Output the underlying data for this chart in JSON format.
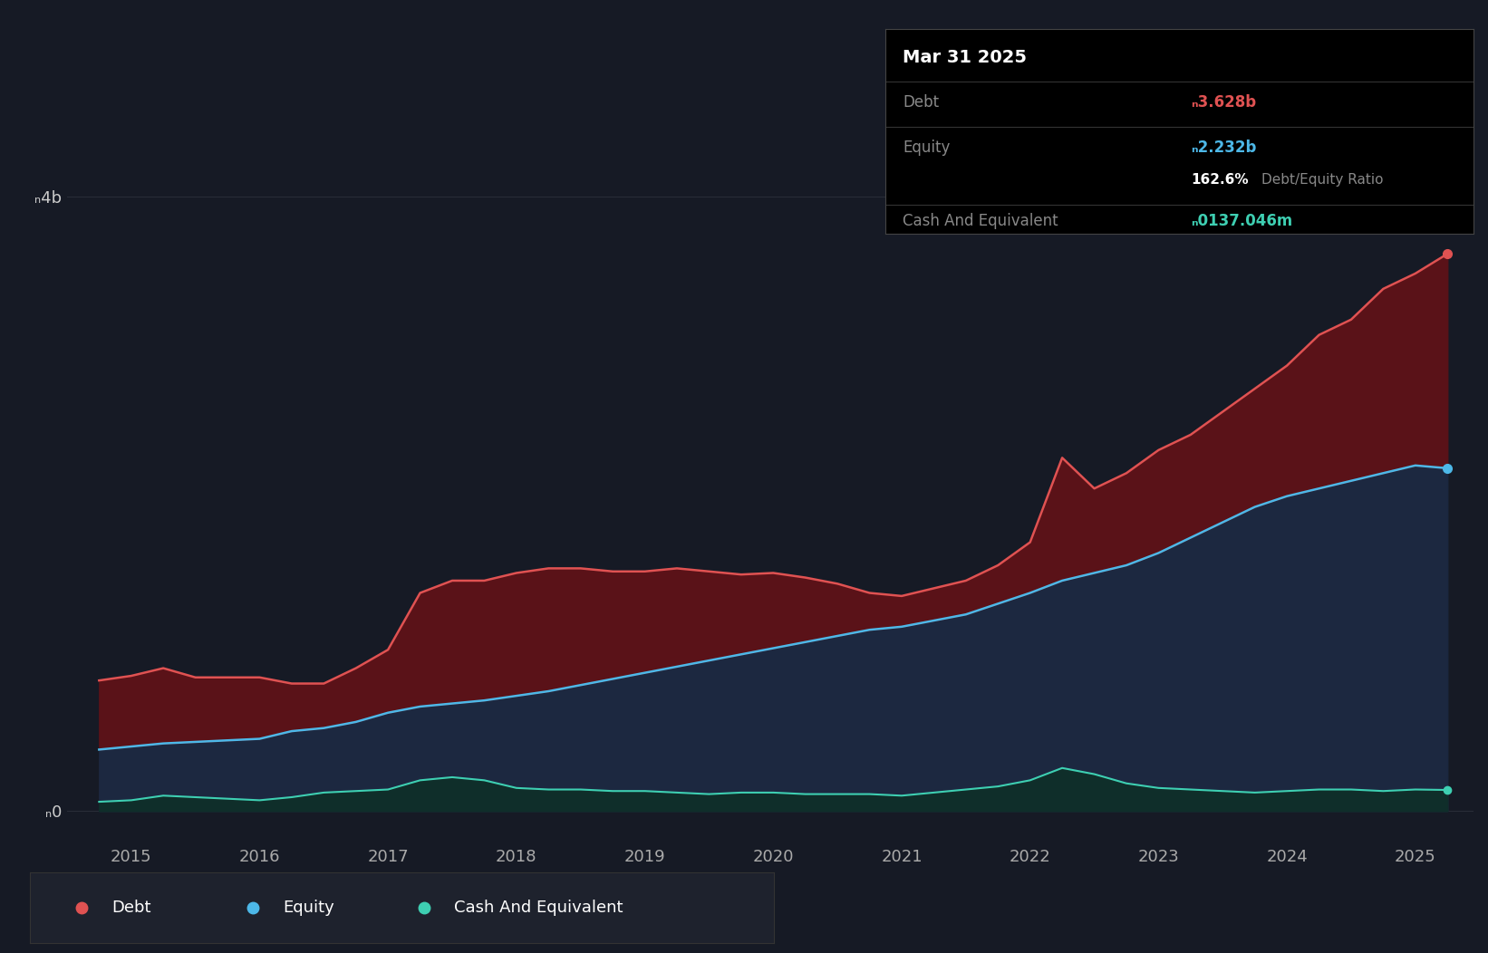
{
  "background_color": "#161a25",
  "plot_bg_color": "#161a25",
  "grid_color": "#2a2e39",
  "ylabel_4b": "ₙ4b",
  "ylabel_0": "ₙ0",
  "years_x": [
    2014.75,
    2015.0,
    2015.25,
    2015.5,
    2015.75,
    2016.0,
    2016.25,
    2016.5,
    2016.75,
    2017.0,
    2017.25,
    2017.5,
    2017.75,
    2018.0,
    2018.25,
    2018.5,
    2018.75,
    2019.0,
    2019.25,
    2019.5,
    2019.75,
    2020.0,
    2020.25,
    2020.5,
    2020.75,
    2021.0,
    2021.25,
    2021.5,
    2021.75,
    2022.0,
    2022.25,
    2022.5,
    2022.75,
    2023.0,
    2023.25,
    2023.5,
    2023.75,
    2024.0,
    2024.25,
    2024.5,
    2024.75,
    2025.0,
    2025.25
  ],
  "debt": [
    0.85,
    0.88,
    0.93,
    0.87,
    0.87,
    0.87,
    0.83,
    0.83,
    0.93,
    1.05,
    1.42,
    1.5,
    1.5,
    1.55,
    1.58,
    1.58,
    1.56,
    1.56,
    1.58,
    1.56,
    1.54,
    1.55,
    1.52,
    1.48,
    1.42,
    1.4,
    1.45,
    1.5,
    1.6,
    1.75,
    2.3,
    2.1,
    2.2,
    2.35,
    2.45,
    2.6,
    2.75,
    2.9,
    3.1,
    3.2,
    3.4,
    3.5,
    3.628
  ],
  "equity": [
    0.4,
    0.42,
    0.44,
    0.45,
    0.46,
    0.47,
    0.52,
    0.54,
    0.58,
    0.64,
    0.68,
    0.7,
    0.72,
    0.75,
    0.78,
    0.82,
    0.86,
    0.9,
    0.94,
    0.98,
    1.02,
    1.06,
    1.1,
    1.14,
    1.18,
    1.2,
    1.24,
    1.28,
    1.35,
    1.42,
    1.5,
    1.55,
    1.6,
    1.68,
    1.78,
    1.88,
    1.98,
    2.05,
    2.1,
    2.15,
    2.2,
    2.25,
    2.232
  ],
  "cash": [
    0.06,
    0.07,
    0.1,
    0.09,
    0.08,
    0.07,
    0.09,
    0.12,
    0.13,
    0.14,
    0.2,
    0.22,
    0.2,
    0.15,
    0.14,
    0.14,
    0.13,
    0.13,
    0.12,
    0.11,
    0.12,
    0.12,
    0.11,
    0.11,
    0.11,
    0.1,
    0.12,
    0.14,
    0.16,
    0.2,
    0.28,
    0.24,
    0.18,
    0.15,
    0.14,
    0.13,
    0.12,
    0.13,
    0.14,
    0.14,
    0.13,
    0.14,
    0.137
  ],
  "debt_color": "#e05252",
  "equity_color": "#4db8e8",
  "cash_color": "#3ecfb2",
  "debt_fill_color": "#5a1218",
  "equity_fill_color": "#1c2840",
  "cash_fill_color": "#0f2e2a",
  "xlim_left": 2014.5,
  "xlim_right": 2025.45,
  "ylim_bottom": -0.18,
  "ylim_top": 4.35,
  "xticks": [
    2015,
    2016,
    2017,
    2018,
    2019,
    2020,
    2021,
    2022,
    2023,
    2024,
    2025
  ],
  "ytick_4b_val": 4.0,
  "ytick_0_val": 0.0,
  "tooltip_title": "Mar 31 2025",
  "tooltip_debt_label": "Debt",
  "tooltip_debt_value": "ₙ3.628b",
  "tooltip_equity_label": "Equity",
  "tooltip_equity_value": "ₙ2.232b",
  "tooltip_ratio": "162.6%",
  "tooltip_ratio_label": "Debt/Equity Ratio",
  "tooltip_cash_label": "Cash And Equivalent",
  "tooltip_cash_value": "ₙ0137.046m",
  "legend_items": [
    {
      "label": "Debt",
      "color": "#e05252"
    },
    {
      "label": "Equity",
      "color": "#4db8e8"
    },
    {
      "label": "Cash And Equivalent",
      "color": "#3ecfb2"
    }
  ]
}
